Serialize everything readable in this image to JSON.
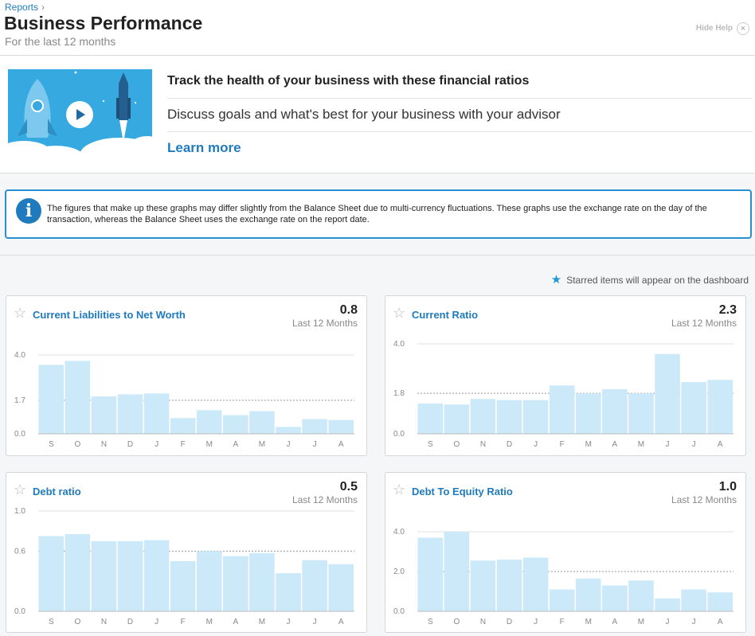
{
  "header": {
    "breadcrumb": "Reports",
    "breadcrumb_sep": "›",
    "title": "Business Performance",
    "subtitle": "For the last 12 months",
    "hide_help": "Hide Help",
    "close_glyph": "×"
  },
  "help": {
    "title": "Track the health of your business with these financial ratios",
    "description": "Discuss goals and what's best for your business with your advisor",
    "link": "Learn more",
    "video_icon": "play-icon"
  },
  "info": {
    "icon": "info-icon",
    "text": "The figures that make up these graphs may differ slightly from the Balance Sheet due to multi-currency fluctuations. These graphs use the exchange rate on the day of the transaction, whereas the Balance Sheet uses the exchange rate on the report date."
  },
  "starred_note": "Starred items will appear on the dashboard",
  "colors": {
    "accent": "#1f7bbd",
    "bar": "#cbe9f9",
    "info_border": "#2a8fd0"
  },
  "chart_data": [
    {
      "type": "bar",
      "title": "Current Liabilities to Net Worth",
      "value": "0.8",
      "period": "Last 12 Months",
      "categories": [
        "S",
        "O",
        "N",
        "D",
        "J",
        "F",
        "M",
        "A",
        "M",
        "J",
        "J",
        "A"
      ],
      "values": [
        3.5,
        3.7,
        1.9,
        2.0,
        2.05,
        0.8,
        1.2,
        0.95,
        1.15,
        0.35,
        0.75,
        0.7
      ],
      "ylim": [
        0,
        4.0
      ],
      "yticks": [
        "0.0",
        "1.7",
        "4.0"
      ],
      "ytick_values": [
        0,
        1.7,
        4.0
      ],
      "reference": 1.7
    },
    {
      "type": "bar",
      "title": "Current Ratio",
      "value": "2.3",
      "period": "Last 12 Months",
      "categories": [
        "S",
        "O",
        "N",
        "D",
        "J",
        "F",
        "M",
        "A",
        "M",
        "J",
        "J",
        "A"
      ],
      "values": [
        1.35,
        1.3,
        1.55,
        1.5,
        1.5,
        2.15,
        1.8,
        1.98,
        1.8,
        3.55,
        2.3,
        2.4
      ],
      "ylim": [
        0,
        4.0
      ],
      "yticks": [
        "0.0",
        "1.8",
        "4.0"
      ],
      "ytick_values": [
        0,
        1.8,
        4.0
      ],
      "reference": 1.8
    },
    {
      "type": "bar",
      "title": "Debt ratio",
      "value": "0.5",
      "period": "Last 12 Months",
      "categories": [
        "S",
        "O",
        "N",
        "D",
        "J",
        "F",
        "M",
        "A",
        "M",
        "J",
        "J",
        "A"
      ],
      "values": [
        0.75,
        0.77,
        0.7,
        0.7,
        0.71,
        0.5,
        0.6,
        0.55,
        0.58,
        0.38,
        0.51,
        0.47
      ],
      "ylim": [
        0,
        1.0
      ],
      "yticks": [
        "0.0",
        "0.6",
        "1.0"
      ],
      "ytick_values": [
        0,
        0.6,
        1.0
      ],
      "reference": 0.6
    },
    {
      "type": "bar",
      "title": "Debt To Equity Ratio",
      "value": "1.0",
      "period": "Last 12 Months",
      "categories": [
        "S",
        "O",
        "N",
        "D",
        "J",
        "F",
        "M",
        "A",
        "M",
        "J",
        "J",
        "A"
      ],
      "values": [
        3.7,
        4.0,
        2.55,
        2.6,
        2.7,
        1.1,
        1.65,
        1.3,
        1.55,
        0.65,
        1.1,
        0.95
      ],
      "ylim": [
        0,
        4.0
      ],
      "yticks": [
        "0.0",
        "2.0",
        "4.0"
      ],
      "ytick_values": [
        0,
        2.0,
        4.0
      ],
      "reference": 2.0
    }
  ]
}
